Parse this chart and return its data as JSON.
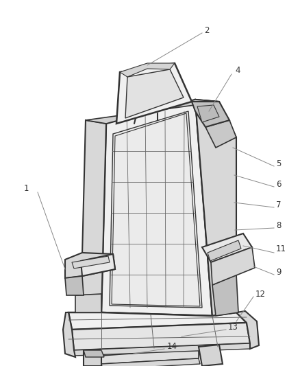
{
  "bg_color": "#ffffff",
  "fig_width": 4.38,
  "fig_height": 5.33,
  "dpi": 100,
  "line_color": "#333333",
  "quilt_color": "#666666",
  "leader_color": "#888888",
  "label_color": "#333333",
  "label_fontsize": 8.5,
  "seat_fill": "#f0f0f0",
  "seat_dark": "#d8d8d8",
  "seat_darker": "#c0c0c0",
  "armrest_fill": "#e8e8e8"
}
